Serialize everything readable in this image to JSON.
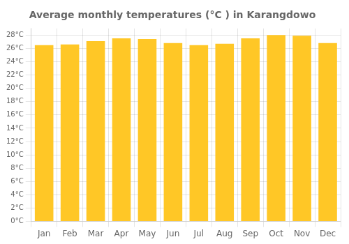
{
  "chart_data": {
    "type": "bar",
    "title": "Average monthly temperatures (°C ) in Karangdowo",
    "categories": [
      "Jan",
      "Feb",
      "Mar",
      "Apr",
      "May",
      "Jun",
      "Jul",
      "Aug",
      "Sep",
      "Oct",
      "Nov",
      "Dec"
    ],
    "values": [
      26.5,
      26.6,
      27.1,
      27.5,
      27.4,
      26.8,
      26.5,
      26.7,
      27.5,
      28.0,
      27.9,
      26.8
    ],
    "color": "#FFC726",
    "ylim": [
      0,
      29
    ],
    "yticks": [
      {
        "value": 0,
        "label": "0°C"
      },
      {
        "value": 2,
        "label": "2°C"
      },
      {
        "value": 4,
        "label": "4°C"
      },
      {
        "value": 6,
        "label": "6°C"
      },
      {
        "value": 8,
        "label": "8°C"
      },
      {
        "value": 10,
        "label": "10°C"
      },
      {
        "value": 12,
        "label": "12°C"
      },
      {
        "value": 14,
        "label": "14°C"
      },
      {
        "value": 16,
        "label": "16°C"
      },
      {
        "value": 18,
        "label": "18°C"
      },
      {
        "value": 20,
        "label": "20°C"
      },
      {
        "value": 22,
        "label": "22°C"
      },
      {
        "value": 24,
        "label": "24°C"
      },
      {
        "value": 26,
        "label": "26°C"
      },
      {
        "value": 28,
        "label": "28°C"
      }
    ],
    "grid": true
  }
}
